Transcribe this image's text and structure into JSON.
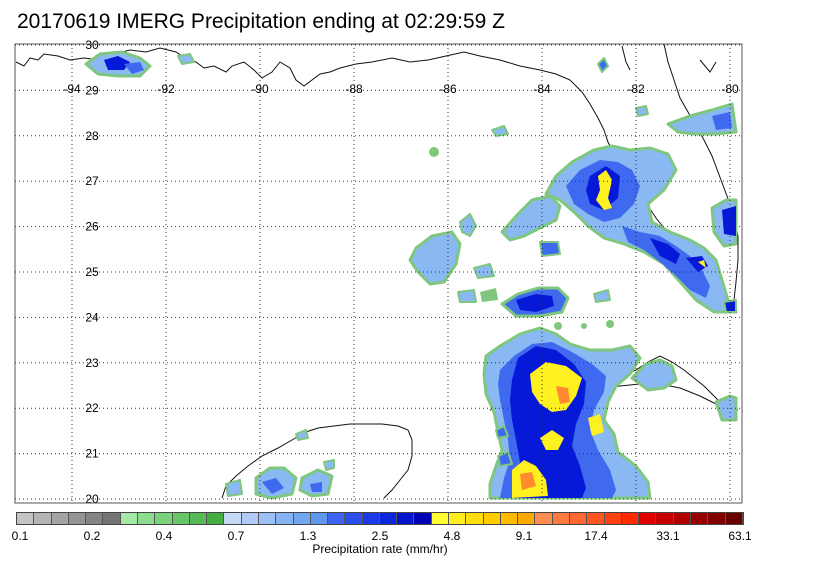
{
  "title": "20170619 IMERG Precipitation ending at 02:29:59 Z",
  "map": {
    "lon_range": [
      -95,
      -80
    ],
    "lat_range": [
      19.8,
      30.1
    ],
    "lon_ticks": [
      "-94",
      "-92",
      "-90",
      "-88",
      "-86",
      "-84",
      "-82",
      "-80"
    ],
    "lat_ticks": [
      "30",
      "29",
      "28",
      "27",
      "26",
      "25",
      "24",
      "23",
      "22",
      "21",
      "20"
    ],
    "gridlines": "dotted"
  },
  "colorbar": {
    "title": "Precipitation rate (mm/hr)",
    "labels": [
      "0.1",
      "0.2",
      "0.4",
      "0.7",
      "1.3",
      "2.5",
      "4.8",
      "9.1",
      "17.4",
      "33.1",
      "63.1"
    ],
    "colors": [
      "#c4c4c4",
      "#b4b4b4",
      "#a4a4a4",
      "#949494",
      "#848484",
      "#747474",
      "#a6e8a6",
      "#8edc8e",
      "#7ad27a",
      "#68c668",
      "#56ba56",
      "#44ae44",
      "#c6d9f7",
      "#b0ccf6",
      "#9cc0f5",
      "#88b3f3",
      "#72a6f1",
      "#5e99ef",
      "#3c64f0",
      "#2a4fee",
      "#1a3ae8",
      "#0c26e0",
      "#0414cc",
      "#0000b4",
      "#ffff33",
      "#ffee22",
      "#ffdd11",
      "#ffcc00",
      "#ffbb00",
      "#ffaa00",
      "#ff8c50",
      "#ff7a40",
      "#ff6830",
      "#ff5520",
      "#ff4010",
      "#ff2a00",
      "#e00000",
      "#c80000",
      "#b00000",
      "#980000",
      "#800000",
      "#680000"
    ],
    "data_colors": {
      "green": "#7fc77f",
      "light_blue": "#8ab8f2",
      "mid_blue": "#3f6af0",
      "dark_blue": "#0618d8",
      "yellow": "#fff020",
      "orange": "#ff8a30"
    }
  }
}
